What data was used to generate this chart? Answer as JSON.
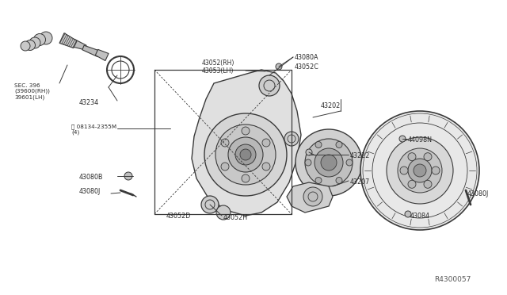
{
  "background_color": "#ffffff",
  "line_color": "#3a3a3a",
  "text_color": "#2a2a2a",
  "ref_number": "R4300057",
  "labels": {
    "sec_ref": "SEC. 396\n(39600(RH))\n39601(LH)",
    "bolt_ref": "08134-2355M\n(4)",
    "l43234": "43234",
    "l43052RH": "43052(RH)",
    "l43053LH": "43053(LH)",
    "l43080A": "43080A",
    "l43052C": "43052C",
    "l43202": "43202",
    "l43222": "43222",
    "l43207": "43207",
    "l43080B": "43080B",
    "l43080J_L": "43080J",
    "l43052H": "43052H",
    "l43052D": "43052D",
    "l44098N": "44098N",
    "l43084": "43084",
    "l43080J_R": "43080J"
  }
}
